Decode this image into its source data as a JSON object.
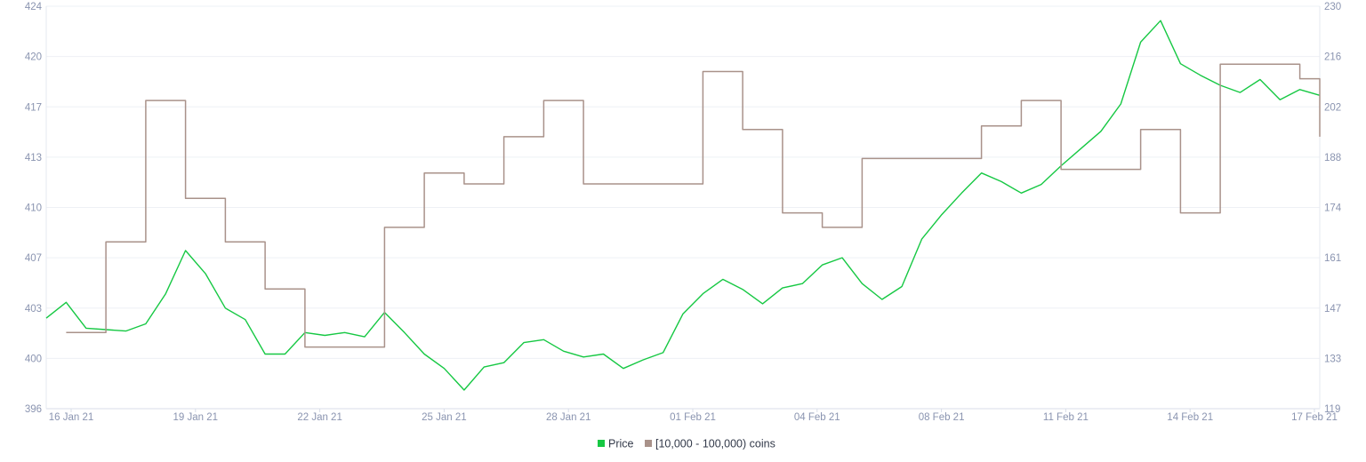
{
  "chart_data": {
    "type": "line",
    "title": "",
    "xlabel": "",
    "x_ticks": [
      "16 Jan 21",
      "19 Jan 21",
      "22 Jan 21",
      "25 Jan 21",
      "28 Jan 21",
      "01 Feb 21",
      "04 Feb 21",
      "08 Feb 21",
      "11 Feb 21",
      "14 Feb 21",
      "17 Feb 21"
    ],
    "x_domain": [
      "2021-01-16",
      "2021-02-17"
    ],
    "y_left": {
      "ticks": [
        "424",
        "420",
        "417",
        "413",
        "410",
        "407",
        "403",
        "400",
        "396"
      ],
      "ylim": [
        396,
        424
      ]
    },
    "y_right": {
      "ticks": [
        "230",
        "216",
        "202",
        "188",
        "174",
        "161",
        "147",
        "133",
        "119"
      ],
      "ylim": [
        119,
        230
      ]
    },
    "grid": "horizontal",
    "legend_position": "bottom-center",
    "series": [
      {
        "name": "Price",
        "axis": "left",
        "color": "#16c843",
        "style": "line",
        "x": [
          "2021-01-16",
          "2021-01-16 12:00",
          "2021-01-17",
          "2021-01-17 12:00",
          "2021-01-18",
          "2021-01-18 12:00",
          "2021-01-19",
          "2021-01-19 12:00",
          "2021-01-20",
          "2021-01-20 12:00",
          "2021-01-21",
          "2021-01-21 12:00",
          "2021-01-22",
          "2021-01-22 12:00",
          "2021-01-23",
          "2021-01-23 12:00",
          "2021-01-24",
          "2021-01-24 12:00",
          "2021-01-25",
          "2021-01-25 12:00",
          "2021-01-26",
          "2021-01-26 12:00",
          "2021-01-27",
          "2021-01-27 12:00",
          "2021-01-28",
          "2021-01-28 12:00",
          "2021-01-29",
          "2021-01-29 12:00",
          "2021-01-30",
          "2021-01-30 12:00",
          "2021-01-31",
          "2021-01-31 12:00",
          "2021-02-01",
          "2021-02-01 12:00",
          "2021-02-02",
          "2021-02-02 12:00",
          "2021-02-03",
          "2021-02-03 12:00",
          "2021-02-04",
          "2021-02-04 12:00",
          "2021-02-05",
          "2021-02-05 12:00",
          "2021-02-06",
          "2021-02-06 12:00",
          "2021-02-07",
          "2021-02-07 12:00",
          "2021-02-08",
          "2021-02-08 12:00",
          "2021-02-09",
          "2021-02-09 12:00",
          "2021-02-10",
          "2021-02-10 12:00",
          "2021-02-11",
          "2021-02-11 12:00",
          "2021-02-12",
          "2021-02-12 12:00",
          "2021-02-13",
          "2021-02-13 12:00",
          "2021-02-14",
          "2021-02-14 12:00",
          "2021-02-15",
          "2021-02-15 12:00",
          "2021-02-16",
          "2021-02-16 12:00",
          "2021-02-17"
        ],
        "values": [
          402.3,
          403.4,
          401.6,
          401.5,
          401.4,
          401.9,
          404.0,
          407.0,
          405.4,
          403.0,
          402.2,
          399.8,
          399.8,
          401.3,
          401.1,
          401.3,
          401.0,
          402.7,
          401.3,
          399.8,
          398.8,
          397.3,
          398.9,
          399.2,
          400.6,
          400.8,
          400.0,
          399.6,
          399.8,
          398.8,
          399.4,
          399.9,
          402.6,
          404.0,
          405.0,
          404.3,
          403.3,
          404.4,
          404.7,
          406.0,
          406.5,
          404.7,
          403.6,
          404.5,
          407.8,
          409.5,
          411.0,
          412.4,
          411.8,
          411.0,
          411.6,
          412.9,
          414.1,
          415.3,
          417.2,
          421.5,
          423.0,
          420.0,
          419.2,
          418.5,
          418.0,
          418.9,
          417.5,
          418.2,
          417.8
        ]
      },
      {
        "name": "[10,000 - 100,000) coins",
        "axis": "right",
        "color": "#a9928a",
        "style": "step",
        "x": [
          "2021-01-16 12:00",
          "2021-01-17 12:00",
          "2021-01-18 12:00",
          "2021-01-19 12:00",
          "2021-01-20 12:00",
          "2021-01-21 12:00",
          "2021-01-22 12:00",
          "2021-01-23 12:00",
          "2021-01-24 12:00",
          "2021-01-25 12:00",
          "2021-01-26 12:00",
          "2021-01-27 12:00",
          "2021-01-28 12:00",
          "2021-01-29 12:00",
          "2021-02-01 12:00",
          "2021-02-02 12:00",
          "2021-02-03 12:00",
          "2021-02-04 12:00",
          "2021-02-05 12:00",
          "2021-02-08 12:00",
          "2021-02-09 12:00",
          "2021-02-10 12:00",
          "2021-02-11 12:00",
          "2021-02-12 12:00",
          "2021-02-13 12:00",
          "2021-02-14 12:00",
          "2021-02-15 12:00",
          "2021-02-16 12:00",
          "2021-02-17"
        ],
        "values": [
          140,
          165,
          204,
          177,
          165,
          152,
          136,
          136,
          169,
          184,
          181,
          194,
          204,
          181,
          212,
          196,
          173,
          169,
          188,
          197,
          204,
          185,
          185,
          196,
          173,
          214,
          214,
          210,
          194
        ]
      }
    ]
  },
  "legend": {
    "items": [
      {
        "label": "Price",
        "color": "#16c843"
      },
      {
        "label": "[10,000 - 100,000) coins",
        "color": "#a9928a"
      }
    ]
  }
}
